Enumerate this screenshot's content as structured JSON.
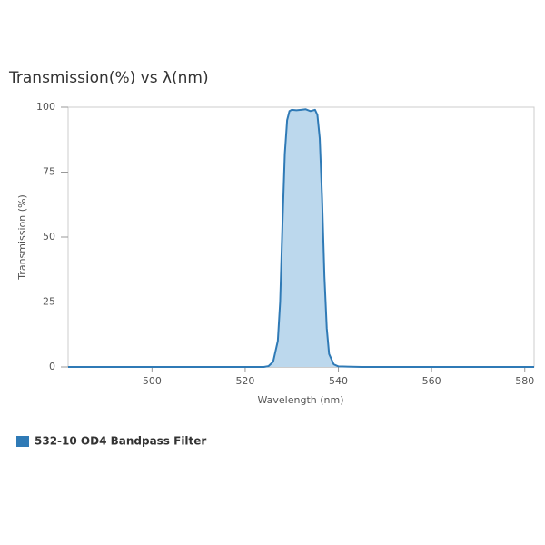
{
  "chart_data": {
    "type": "area",
    "title": "Transmission(%) vs λ(nm)",
    "x_label": "Wavelength (nm)",
    "y_label": "Transmission (%)",
    "x": [
      482,
      524,
      525,
      526,
      527,
      527.5,
      528,
      528.5,
      529,
      529.5,
      530,
      531,
      532,
      533,
      534,
      535,
      535.5,
      536,
      536.5,
      537,
      537.5,
      538,
      539,
      540,
      545,
      582
    ],
    "series": [
      {
        "name": "532-10 OD4 Bandpass Filter",
        "color": "#2f7ab6",
        "fill": "#bcd8ed",
        "values": [
          0,
          0,
          0.3,
          2,
          10,
          25,
          55,
          82,
          95,
          98.5,
          99,
          98.8,
          99,
          99.2,
          98.5,
          99,
          97,
          88,
          65,
          35,
          15,
          5,
          1,
          0.2,
          0,
          0
        ]
      }
    ],
    "xlim": [
      482,
      582
    ],
    "ylim": [
      0,
      100
    ],
    "xticks": [
      500,
      520,
      540,
      560,
      580
    ],
    "yticks": [
      0,
      25,
      50,
      75,
      100
    ],
    "grid": false
  }
}
